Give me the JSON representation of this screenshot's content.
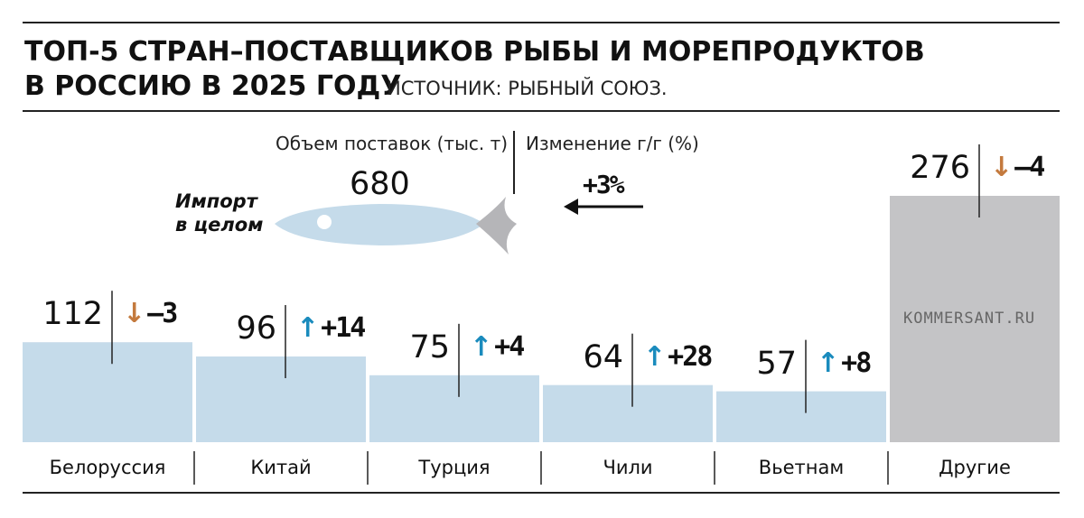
{
  "title_line1": "ТОП-5 СТРАН–ПОСТАВЩИКОВ РЫБЫ И МОРЕПРОДУКТОВ",
  "title_line2": "В РОССИЮ В 2025 ГОДУ",
  "source": "ИСТОЧНИК: РЫБНЫЙ СОЮЗ.",
  "volume_header": "Объем поставок (тыс. т)",
  "change_header": "Изменение г/г (%)",
  "import_total": {
    "label_line1": "Импорт",
    "label_line2": "в целом",
    "value": "680",
    "change": "+3%"
  },
  "watermark": "KOMMERSANT.RU",
  "colors": {
    "bar": "#c5dbea",
    "other_bar": "#c4c4c6",
    "up_arrow": "#1a8bbd",
    "down_arrow": "#c47a3e",
    "fish_tail": "#b5b5b8"
  },
  "chart_data": {
    "type": "bar",
    "title": "ТОП-5 СТРАН–ПОСТАВЩИКОВ РЫБЫ И МОРЕПРОДУКТОВ В РОССИЮ В 2025 ГОДУ",
    "categories": [
      "Белоруссия",
      "Китай",
      "Турция",
      "Чили",
      "Вьетнам",
      "Другие"
    ],
    "values": [
      112,
      96,
      75,
      64,
      57,
      276
    ],
    "value_labels": [
      "112",
      "96",
      "75",
      "64",
      "57",
      "276"
    ],
    "changes": [
      {
        "dir": "down",
        "label": "–3"
      },
      {
        "dir": "up",
        "label": "+14"
      },
      {
        "dir": "up",
        "label": "+4"
      },
      {
        "dir": "up",
        "label": "+28"
      },
      {
        "dir": "up",
        "label": "+8"
      },
      {
        "dir": "down",
        "label": "–4"
      }
    ],
    "total": 680,
    "total_change_pct": 3,
    "ylim": [
      0,
      276
    ],
    "grid": false,
    "legend": "none"
  }
}
